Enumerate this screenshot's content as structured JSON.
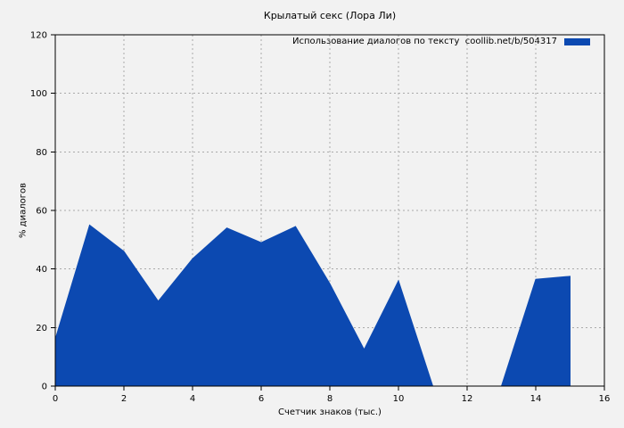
{
  "chart_data": {
    "type": "area",
    "title": "Крылатый секс (Лора Ли)",
    "legend": "Использование диалогов по тексту  coollib.net/b/504317",
    "xlabel": "Счетчик знаков (тыс.)",
    "ylabel": "% диалогов",
    "xlim": [
      0,
      16
    ],
    "ylim": [
      0,
      120
    ],
    "xticks": [
      0,
      2,
      4,
      6,
      8,
      10,
      12,
      14,
      16
    ],
    "yticks": [
      0,
      20,
      40,
      60,
      80,
      100,
      120
    ],
    "grid": true,
    "legend_position": "top-right-inside",
    "x": [
      0,
      1,
      2,
      3,
      4,
      5,
      6,
      7,
      8,
      9,
      10,
      11,
      12,
      13,
      14,
      15
    ],
    "values": [
      16,
      55,
      46,
      29,
      43.5,
      54,
      49,
      54.5,
      35,
      12.5,
      36,
      0,
      0,
      0,
      36.5,
      37.5
    ],
    "series_color": "#0c49b1",
    "background_color": "#f2f2f2",
    "grid_color": "#aaaaaa",
    "axis_color": "#000000"
  }
}
